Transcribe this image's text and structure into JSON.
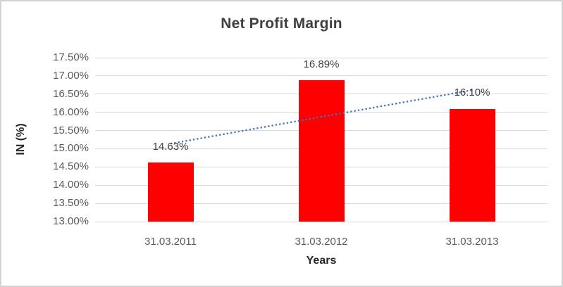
{
  "chart_data": {
    "type": "bar",
    "title": "Net Profit Margin",
    "xlabel": "Years",
    "ylabel": "IN (%)",
    "categories": [
      "31.03.2011",
      "31.03.2012",
      "31.03.2013"
    ],
    "values": [
      14.63,
      16.89,
      16.1
    ],
    "data_labels": [
      "14.63%",
      "16.89%",
      "16.10%"
    ],
    "ylim": [
      13.0,
      17.5
    ],
    "ytick_step": 0.5,
    "ytick_labels": [
      "13.00%",
      "13.50%",
      "14.00%",
      "14.50%",
      "15.00%",
      "15.50%",
      "16.00%",
      "16.50%",
      "17.00%",
      "17.50%"
    ],
    "grid": true,
    "legend": "none",
    "bar_color": "#ff0000",
    "gridline_color": "#d9d9d9",
    "tick_label_color": "#595959",
    "title_color": "#404040",
    "data_label_color": "#404040",
    "axis_title_color": "#262626",
    "trendline": {
      "type": "linear",
      "style": "dotted",
      "color": "#4472c4",
      "start_value": 15.14,
      "end_value": 16.61
    }
  }
}
